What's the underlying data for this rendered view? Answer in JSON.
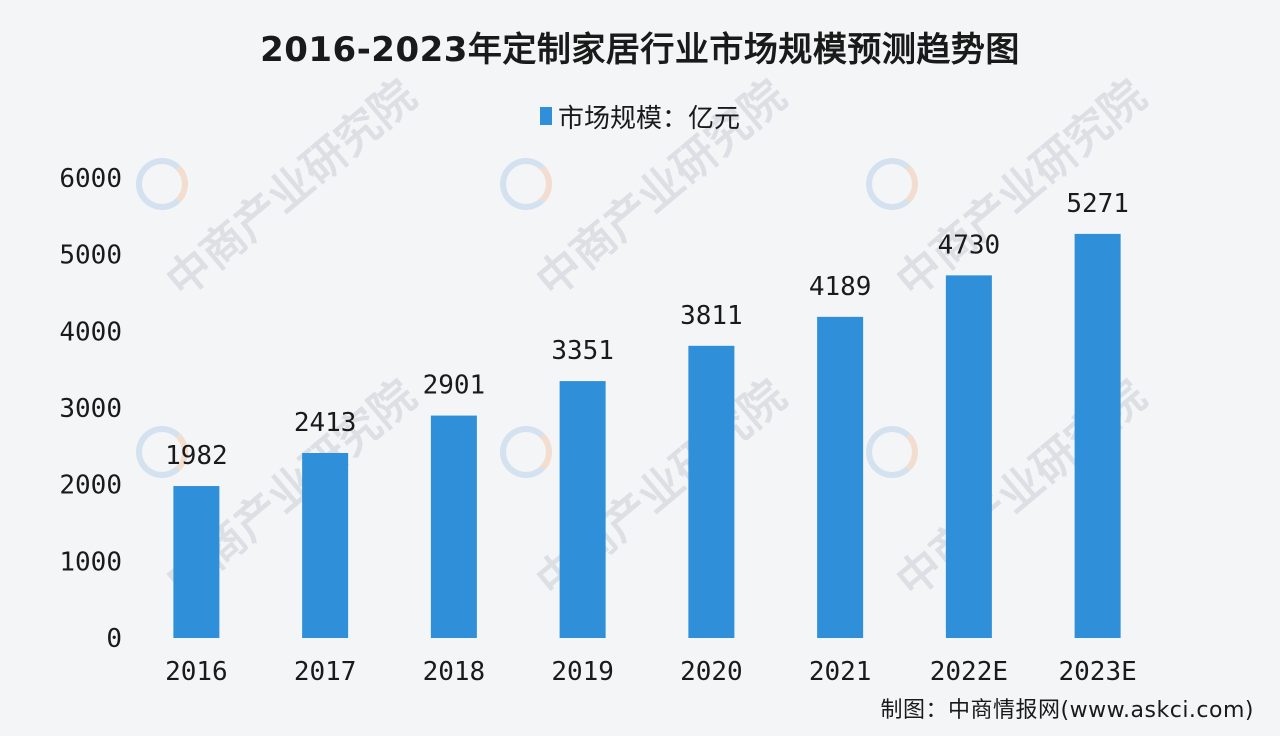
{
  "chart_data": {
    "type": "bar",
    "title": "2016-2023年定制家居行业市场规模预测趋势图",
    "legend": {
      "label": "市场规模：亿元",
      "position": "top"
    },
    "categories": [
      "2016",
      "2017",
      "2018",
      "2019",
      "2020",
      "2021",
      "2022E",
      "2023E"
    ],
    "series": [
      {
        "name": "市场规模：亿元",
        "values": [
          1982,
          2413,
          2901,
          3351,
          3811,
          4189,
          4730,
          5271
        ]
      }
    ],
    "ylim": [
      0,
      6000
    ],
    "yticks": [
      "0",
      "1000",
      "2000",
      "3000",
      "4000",
      "5000",
      "6000"
    ],
    "xlabel": "",
    "ylabel": "",
    "grid": false,
    "bar_color": "#2f8fd8"
  },
  "footer": {
    "credit": "制图：中商情报网(www.askci.com)"
  },
  "watermark": {
    "text": "中商产业研究院"
  }
}
